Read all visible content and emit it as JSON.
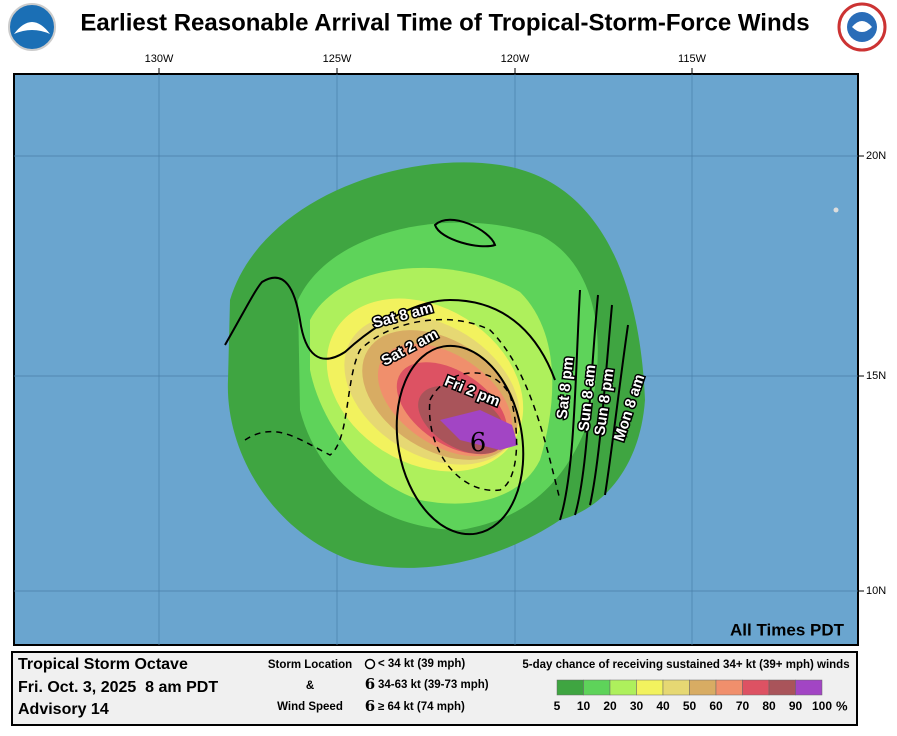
{
  "header": {
    "title": "Earliest Reasonable Arrival Time of Tropical-Storm-Force Winds"
  },
  "map": {
    "lon_labels": [
      "130W",
      "125W",
      "120W",
      "115W"
    ],
    "lat_labels": [
      "20N",
      "15N",
      "10N"
    ],
    "time_zone_note": "All Times PDT",
    "contour_labels": [
      "Sat 8 am",
      "Sat 2 am",
      "Fri 2 pm",
      "Sat 8 pm",
      "Sun 8 am",
      "Sun 8 pm",
      "Mon 8 am"
    ]
  },
  "footer": {
    "storm_name": "Tropical Storm Octave",
    "issued": "Fri. Oct. 3, 2025  8 am PDT",
    "advisory": "Advisory 14",
    "storm_key": {
      "label_lines": [
        "Storm Location",
        "&",
        "Wind Speed"
      ],
      "items": [
        "< 34 kt (39 mph)",
        "34-63 kt (39-73 mph)",
        "≥ 64 kt (74 mph)"
      ]
    },
    "probability": {
      "title": "5-day chance of receiving sustained 34+ kt (39+ mph) winds",
      "bins": [
        5,
        10,
        20,
        30,
        40,
        50,
        60,
        70,
        80,
        90,
        100
      ],
      "unit": "%",
      "colors": [
        "#3fa541",
        "#5ed35a",
        "#aef05c",
        "#f2f25e",
        "#e6d873",
        "#d8ac63",
        "#f08f6c",
        "#dd5263",
        "#a9545a",
        "#a245c4"
      ]
    }
  }
}
